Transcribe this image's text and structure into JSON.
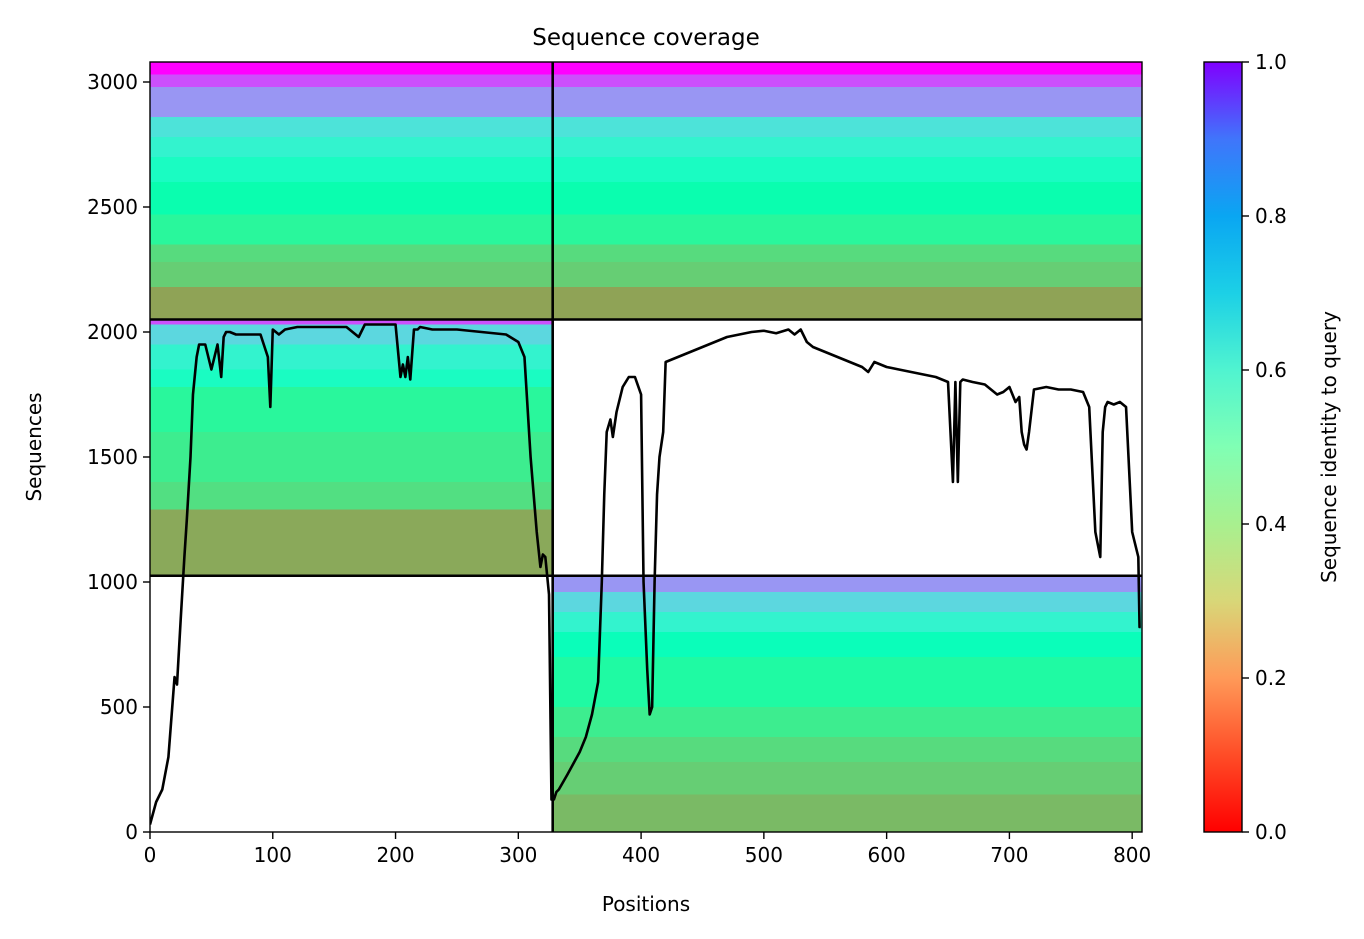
{
  "chart_data": {
    "type": "heatmap",
    "title": "Sequence coverage",
    "xlabel": "Positions",
    "ylabel": "Sequences",
    "colorbar_label": "Sequence identity to query",
    "xlim": [
      0,
      808
    ],
    "ylim": [
      0,
      3080
    ],
    "x_ticks": [
      0,
      100,
      200,
      300,
      400,
      500,
      600,
      700,
      800
    ],
    "y_ticks": [
      0,
      500,
      1000,
      1500,
      2000,
      2500,
      3000
    ],
    "colorbar_ticks": [
      "0.0",
      "0.2",
      "0.4",
      "0.6",
      "0.8",
      "1.0"
    ],
    "colormap": "rainbow_r",
    "colorbar_range": [
      0,
      1
    ],
    "grid": false,
    "chain_boundary_x": 328,
    "msa_blocks": [
      {
        "name": "paired",
        "x": [
          0,
          808
        ],
        "y": [
          2050,
          3080
        ],
        "bands": [
          {
            "y": [
              3030,
              3080
            ],
            "identity": 1.0
          },
          {
            "y": [
              2980,
              3030
            ],
            "identity": 0.9
          },
          {
            "y": [
              2860,
              2980
            ],
            "identity": 0.8
          },
          {
            "y": [
              2780,
              2860
            ],
            "identity": 0.65
          },
          {
            "y": [
              2700,
              2780
            ],
            "identity": 0.6
          },
          {
            "y": [
              2600,
              2700
            ],
            "identity": 0.55
          },
          {
            "y": [
              2470,
              2600
            ],
            "identity": 0.48
          },
          {
            "y": [
              2350,
              2470
            ],
            "identity": 0.42
          },
          {
            "y": [
              2280,
              2350
            ],
            "identity": 0.33
          },
          {
            "y": [
              2180,
              2280
            ],
            "identity": 0.3
          },
          {
            "y": [
              2050,
              2180
            ],
            "identity": 0.22
          }
        ]
      },
      {
        "name": "chain_A",
        "x": [
          0,
          328
        ],
        "y": [
          1025,
          2050
        ],
        "bands": [
          {
            "y": [
              2030,
              2050
            ],
            "identity": 0.9
          },
          {
            "y": [
              1950,
              2030
            ],
            "identity": 0.68
          },
          {
            "y": [
              1850,
              1950
            ],
            "identity": 0.6
          },
          {
            "y": [
              1780,
              1850
            ],
            "identity": 0.55
          },
          {
            "y": [
              1600,
              1780
            ],
            "identity": 0.42
          },
          {
            "y": [
              1400,
              1600
            ],
            "identity": 0.38
          },
          {
            "y": [
              1290,
              1400
            ],
            "identity": 0.34
          },
          {
            "y": [
              1025,
              1290
            ],
            "identity": 0.23
          }
        ]
      },
      {
        "name": "chain_B",
        "x": [
          328,
          808
        ],
        "y": [
          0,
          1025
        ],
        "bands": [
          {
            "y": [
              960,
              1025
            ],
            "identity": 0.8
          },
          {
            "y": [
              880,
              960
            ],
            "identity": 0.68
          },
          {
            "y": [
              800,
              880
            ],
            "identity": 0.6
          },
          {
            "y": [
              700,
              800
            ],
            "identity": 0.52
          },
          {
            "y": [
              500,
              700
            ],
            "identity": 0.44
          },
          {
            "y": [
              380,
              500
            ],
            "identity": 0.38
          },
          {
            "y": [
              280,
              380
            ],
            "identity": 0.33
          },
          {
            "y": [
              150,
              280
            ],
            "identity": 0.3
          },
          {
            "y": [
              0,
              150
            ],
            "identity": 0.26
          }
        ]
      }
    ],
    "coverage_line": {
      "x": [
        0,
        5,
        10,
        15,
        20,
        22,
        25,
        28,
        30,
        33,
        35,
        38,
        40,
        45,
        50,
        55,
        58,
        60,
        62,
        65,
        70,
        80,
        90,
        96,
        98,
        100,
        105,
        110,
        120,
        140,
        160,
        170,
        175,
        180,
        190,
        200,
        204,
        206,
        208,
        210,
        212,
        215,
        218,
        220,
        230,
        250,
        270,
        290,
        300,
        305,
        310,
        315,
        318,
        320,
        322,
        325,
        327,
        329,
        331,
        333,
        340,
        350,
        355,
        360,
        365,
        368,
        370,
        372,
        375,
        377,
        380,
        385,
        390,
        395,
        400,
        402,
        405,
        407,
        409,
        411,
        413,
        415,
        418,
        420,
        430,
        440,
        450,
        460,
        470,
        480,
        490,
        500,
        510,
        520,
        525,
        530,
        535,
        540,
        550,
        560,
        570,
        580,
        585,
        590,
        600,
        610,
        620,
        630,
        640,
        650,
        654,
        656,
        658,
        660,
        662,
        670,
        680,
        690,
        695,
        700,
        705,
        708,
        710,
        712,
        714,
        716,
        720,
        730,
        740,
        750,
        760,
        765,
        770,
        772,
        774,
        776,
        778,
        780,
        785,
        790,
        795,
        800,
        805,
        806,
        807,
        808
      ],
      "y": [
        30,
        120,
        170,
        300,
        620,
        590,
        850,
        1100,
        1250,
        1500,
        1750,
        1900,
        1950,
        1950,
        1850,
        1950,
        1820,
        1980,
        2000,
        2000,
        1990,
        1990,
        1990,
        1900,
        1700,
        2010,
        1990,
        2010,
        2020,
        2020,
        2020,
        1980,
        2030,
        2030,
        2030,
        2030,
        1820,
        1870,
        1820,
        1900,
        1810,
        2010,
        2010,
        2020,
        2010,
        2010,
        2000,
        1990,
        1960,
        1900,
        1500,
        1200,
        1060,
        1110,
        1100,
        950,
        130,
        130,
        160,
        170,
        230,
        320,
        380,
        470,
        600,
        1000,
        1350,
        1600,
        1650,
        1580,
        1680,
        1780,
        1820,
        1820,
        1750,
        1000,
        650,
        470,
        500,
        1000,
        1350,
        1500,
        1600,
        1880,
        1900,
        1920,
        1940,
        1960,
        1980,
        1990,
        2000,
        2005,
        1995,
        2010,
        1990,
        2010,
        1960,
        1940,
        1920,
        1900,
        1880,
        1860,
        1840,
        1880,
        1860,
        1850,
        1840,
        1830,
        1820,
        1800,
        1400,
        1800,
        1400,
        1800,
        1810,
        1800,
        1790,
        1750,
        1760,
        1780,
        1720,
        1740,
        1600,
        1550,
        1530,
        1600,
        1770,
        1780,
        1770,
        1770,
        1760,
        1700,
        1200,
        1150,
        1100,
        1600,
        1700,
        1720,
        1710,
        1720,
        1700,
        1200,
        1100,
        820,
        820
      ]
    }
  }
}
